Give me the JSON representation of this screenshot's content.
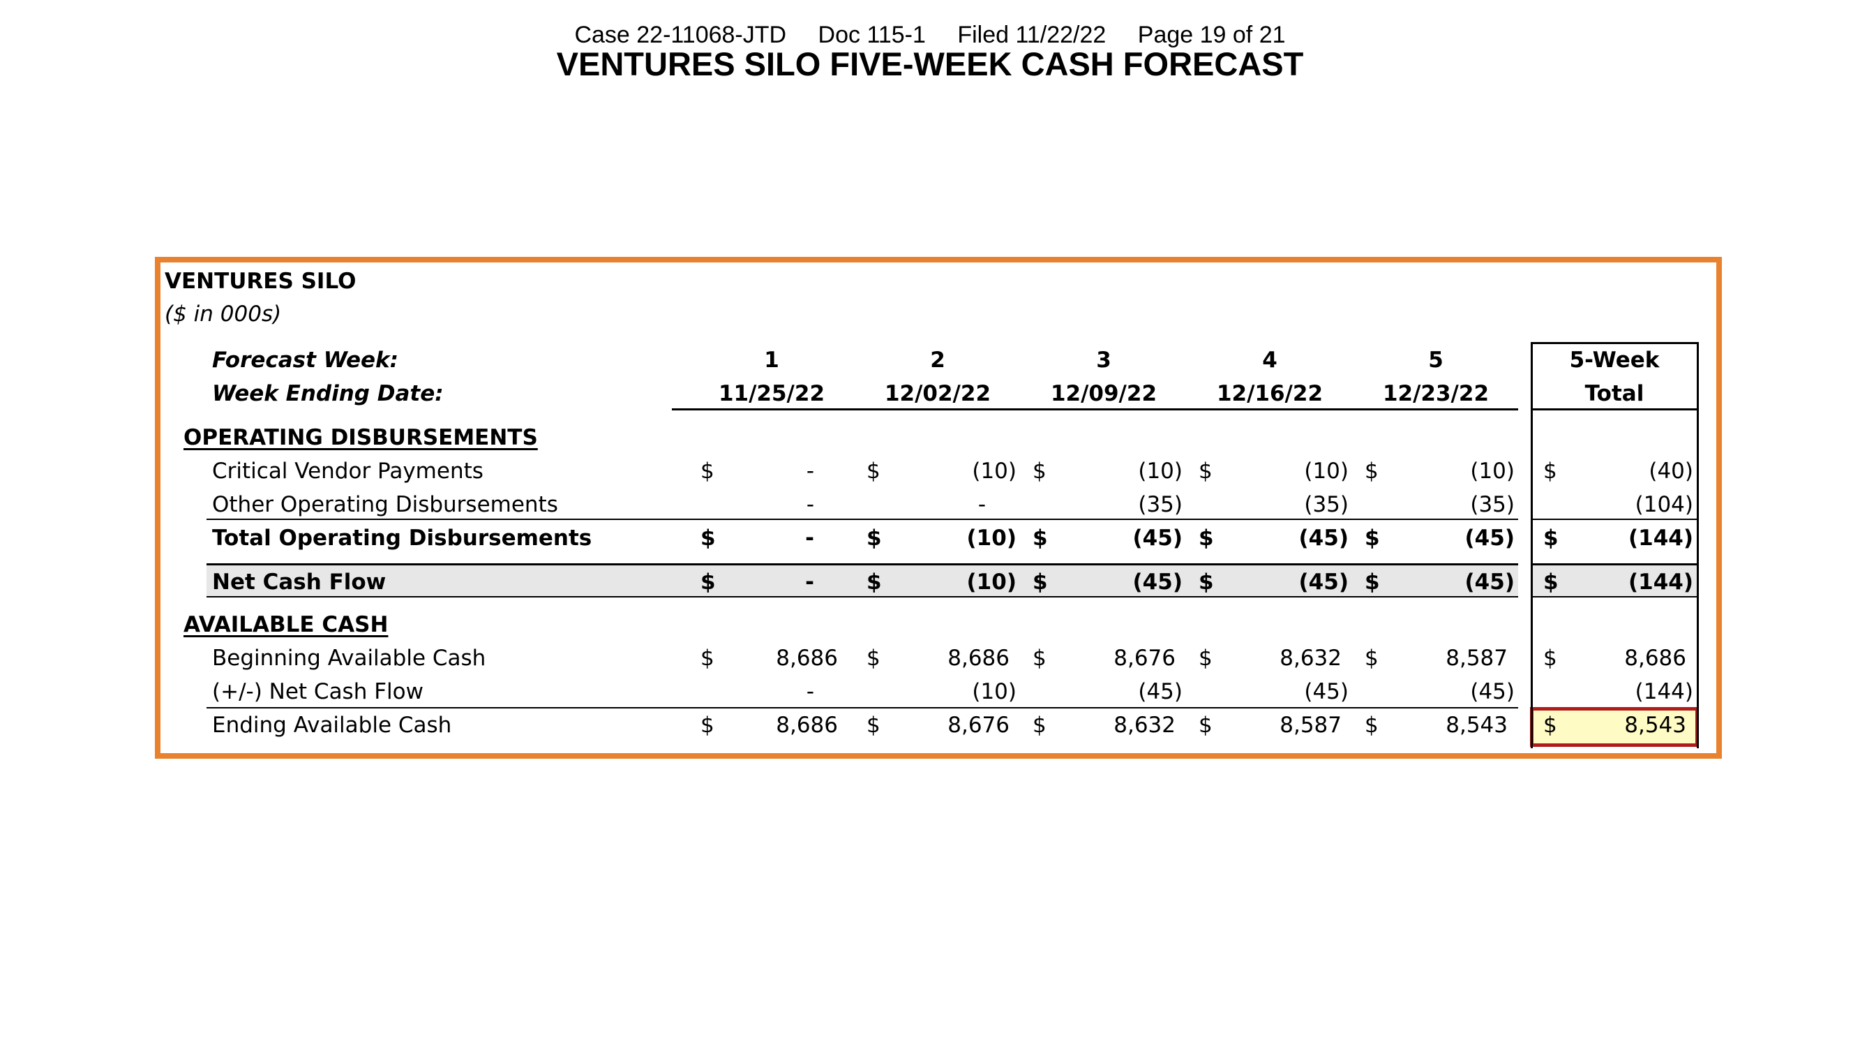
{
  "header": {
    "case": "Case 22-11068-JTD",
    "doc": "Doc 115-1",
    "filed": "Filed 11/22/22",
    "page": "Page 19 of 21"
  },
  "title": "VENTURES SILO FIVE-WEEK CASH FORECAST",
  "table": {
    "entity": "VENTURES SILO",
    "units": "($ in 000s)",
    "forecast_week_label": "Forecast Week:",
    "week_ending_label": "Week Ending Date:",
    "weeks": [
      "1",
      "2",
      "3",
      "4",
      "5"
    ],
    "dates": [
      "11/25/22",
      "12/02/22",
      "12/09/22",
      "12/16/22",
      "12/23/22"
    ],
    "total_header_1": "5-Week",
    "total_header_2": "Total",
    "currency_symbol": "$",
    "sections": {
      "operating": "OPERATING DISBURSEMENTS",
      "available": "AVAILABLE CASH"
    },
    "rows": {
      "critical_vendor": {
        "label": "Critical Vendor Payments",
        "values": [
          "-",
          "(10)",
          "(10)",
          "(10)",
          "(10)"
        ],
        "total": "(40)"
      },
      "other_operating": {
        "label": "Other Operating Disbursements",
        "values": [
          "-",
          "-",
          "(35)",
          "(35)",
          "(35)"
        ],
        "total": "(104)"
      },
      "total_operating": {
        "label": "Total Operating Disbursements",
        "values": [
          "-",
          "(10)",
          "(45)",
          "(45)",
          "(45)"
        ],
        "total": "(144)"
      },
      "net_cash_flow": {
        "label": "Net Cash Flow",
        "values": [
          "-",
          "(10)",
          "(45)",
          "(45)",
          "(45)"
        ],
        "total": "(144)"
      },
      "beginning_cash": {
        "label": "Beginning Available Cash",
        "values": [
          "8,686",
          "8,686",
          "8,676",
          "8,632",
          "8,587"
        ],
        "total": "8,686"
      },
      "plus_minus_ncf": {
        "label": "(+/-) Net Cash Flow",
        "values": [
          "-",
          "(10)",
          "(45)",
          "(45)",
          "(45)"
        ],
        "total": "(144)"
      },
      "ending_cash": {
        "label": "Ending Available Cash",
        "values": [
          "8,686",
          "8,676",
          "8,632",
          "8,587",
          "8,543"
        ],
        "total": "8,543"
      }
    },
    "colors": {
      "frame_border": "#e8822e",
      "net_cash_flow_shading": "#e7e7e7",
      "ending_total_highlight_fill": "#fffbc4",
      "ending_total_highlight_border": "#b01c1c"
    }
  }
}
